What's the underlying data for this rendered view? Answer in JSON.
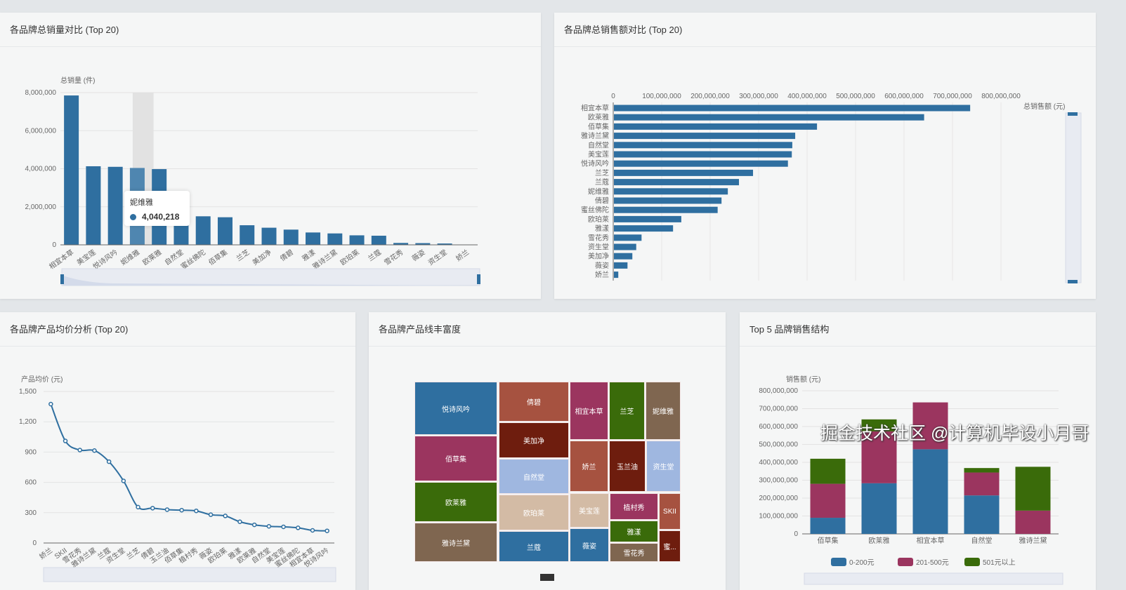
{
  "panels": {
    "p1": {
      "title": "各品牌总销量对比 (Top 20)"
    },
    "p2": {
      "title": "各品牌总销售额对比 (Top 20)"
    },
    "p3": {
      "title": "各品牌产品均价分析 (Top 20)"
    },
    "p4": {
      "title": "各品牌产品线丰富度"
    },
    "p5": {
      "title": "Top 5 品牌销售结构"
    }
  },
  "tooltip": {
    "name": "妮维雅",
    "value": "4,040,218"
  },
  "watermark": "掘金技术社区 @计算机毕设小月哥",
  "colors": {
    "blue": "#2f6fa0",
    "purple": "#9b355f",
    "green": "#3a6b0a"
  },
  "chart_data": [
    {
      "type": "bar",
      "title": "各品牌总销量对比 (Top 20)",
      "ylabel": "总销量 (件)",
      "ylim": [
        0,
        8000000
      ],
      "yticks": [
        "0",
        "2,000,000",
        "4,000,000",
        "6,000,000",
        "8,000,000"
      ],
      "categories": [
        "相宜本草",
        "美宝莲",
        "悦诗风吟",
        "妮维雅",
        "欧莱雅",
        "自然堂",
        "蜜丝佛陀",
        "佰草集",
        "兰芝",
        "美加净",
        "倩碧",
        "雅漾",
        "雅诗兰黛",
        "欧珀莱",
        "兰蔻",
        "雪花秀",
        "薇姿",
        "资生堂",
        "娇兰"
      ],
      "values": [
        7850000,
        4130000,
        4100000,
        4040218,
        3980000,
        1600000,
        1500000,
        1450000,
        1030000,
        900000,
        800000,
        650000,
        600000,
        500000,
        480000,
        100000,
        90000,
        70000,
        10000
      ]
    },
    {
      "type": "bar",
      "orientation": "horizontal",
      "title": "各品牌总销售额对比 (Top 20)",
      "xlabel": "总销售额 (元)",
      "xlim": [
        0,
        800000000
      ],
      "xticks": [
        "0",
        "100,000,000",
        "200,000,000",
        "300,000,000",
        "400,000,000",
        "500,000,000",
        "600,000,000",
        "700,000,000",
        "800,000,000"
      ],
      "categories": [
        "相宜本草",
        "欧莱雅",
        "佰草集",
        "雅诗兰黛",
        "自然堂",
        "美宝莲",
        "悦诗风吟",
        "兰芝",
        "兰蔻",
        "妮维雅",
        "倩碧",
        "蜜丝佛陀",
        "欧珀莱",
        "雅漾",
        "雪花秀",
        "资生堂",
        "美加净",
        "薇姿",
        "娇兰"
      ],
      "values": [
        735000000,
        640000000,
        419000000,
        374000000,
        368000000,
        367000000,
        359000000,
        287000000,
        258000000,
        235000000,
        222000000,
        214000000,
        139000000,
        122000000,
        57000000,
        46000000,
        38000000,
        28000000,
        9000000
      ]
    },
    {
      "type": "line",
      "title": "各品牌产品均价分析 (Top 20)",
      "ylabel": "产品均价 (元)",
      "ylim": [
        0,
        1500
      ],
      "yticks": [
        "0",
        "300",
        "600",
        "900",
        "1,200",
        "1,500"
      ],
      "categories": [
        "娇兰",
        "SKII",
        "雪花秀",
        "雅诗兰黛",
        "兰蔻",
        "资生堂",
        "兰芝",
        "倩碧",
        "玉兰油",
        "佰草集",
        "植村秀",
        "薇姿",
        "欧珀莱",
        "雅漾",
        "欧莱雅",
        "自然堂",
        "美宝莲",
        "蜜丝佛陀",
        "相宜本草",
        "悦诗风吟"
      ],
      "values": [
        1375,
        1010,
        920,
        915,
        805,
        615,
        355,
        345,
        330,
        325,
        318,
        280,
        268,
        210,
        180,
        165,
        160,
        150,
        125,
        120
      ]
    },
    {
      "type": "treemap",
      "title": "各品牌产品线丰富度",
      "labels": [
        "悦诗风吟",
        "佰草集",
        "欧莱雅",
        "雅诗兰黛",
        "倩碧",
        "美加净",
        "自然堂",
        "欧珀莱",
        "兰蔻",
        "相宜本草",
        "娇兰",
        "美宝莲",
        "薇姿",
        "兰芝",
        "玉兰油",
        "妮维雅",
        "资生堂",
        "植村秀",
        "雅漾",
        "雪花秀",
        "SKII",
        "蜜..."
      ]
    },
    {
      "type": "bar",
      "stacked": true,
      "title": "Top 5 品牌销售结构",
      "ylabel": "销售额 (元)",
      "ylim": [
        0,
        800000000
      ],
      "yticks": [
        "0",
        "100,000,000",
        "200,000,000",
        "300,000,000",
        "400,000,000",
        "500,000,000",
        "600,000,000",
        "700,000,000",
        "800,000,000"
      ],
      "categories": [
        "佰草集",
        "欧莱雅",
        "相宜本草",
        "自然堂",
        "雅诗兰黛"
      ],
      "series": [
        {
          "name": "0-200元",
          "values": [
            90000000,
            283000000,
            473000000,
            215000000,
            0
          ]
        },
        {
          "name": "201-500元",
          "values": [
            190000000,
            290000000,
            262000000,
            128000000,
            130000000
          ]
        },
        {
          "name": "501元以上",
          "values": [
            140000000,
            67000000,
            0,
            25000000,
            245000000
          ]
        }
      ]
    }
  ]
}
